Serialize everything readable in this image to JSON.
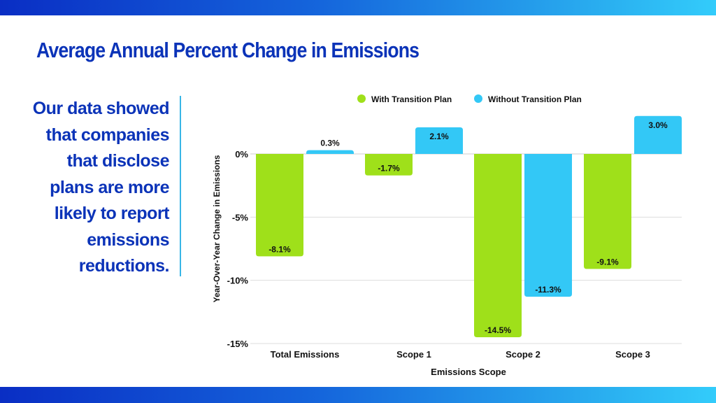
{
  "title": "Average Annual Percent Change in Emissions",
  "side_text": "Our data showed that companies that disclose plans are more likely to report emissions reductions.",
  "colors": {
    "title": "#0b33b8",
    "with_plan": "#9fe01a",
    "without_plan": "#33c8f6",
    "accent_line": "#38b6e6"
  },
  "chart_data": {
    "type": "bar",
    "title": "",
    "xlabel": "Emissions Scope",
    "ylabel": "Year-Over-Year Change in Emissions",
    "categories": [
      "Total Emissions",
      "Scope 1",
      "Scope 2",
      "Scope 3"
    ],
    "series": [
      {
        "name": "With Transition Plan",
        "color": "#9fe01a",
        "values": [
          -8.1,
          -1.7,
          -14.5,
          -9.1
        ],
        "labels": [
          "-8.1%",
          "-1.7%",
          "-14.5%",
          "-9.1%"
        ]
      },
      {
        "name": "Without Transition Plan",
        "color": "#33c8f6",
        "values": [
          0.3,
          2.1,
          -11.3,
          3.0
        ],
        "labels": [
          "0.3%",
          "2.1%",
          "-11.3%",
          "3.0%"
        ]
      }
    ],
    "yticks": [
      0,
      -5,
      -10,
      -15
    ],
    "ytick_labels": [
      "0%",
      "-5%",
      "-10%",
      "-15%"
    ],
    "ylim": [
      -15,
      3
    ],
    "grid": true,
    "legend": "top-center"
  }
}
